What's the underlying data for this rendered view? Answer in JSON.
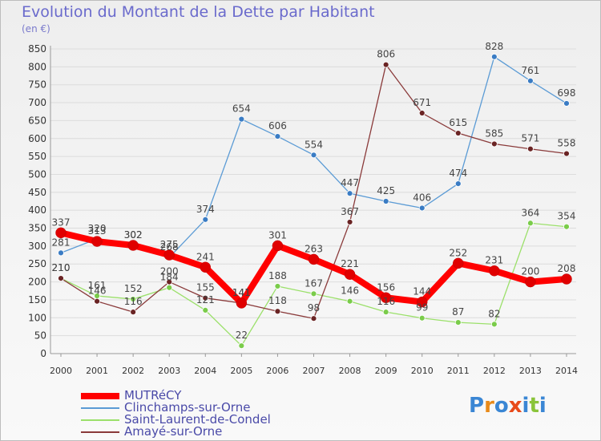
{
  "header": {
    "title": "Evolution du Montant de la Dette par Habitant",
    "subtitle": "(en €)"
  },
  "logo": {
    "text": "Proxiti",
    "colors": [
      "#3a86d4",
      "#e88a1a",
      "#3a86d4",
      "#e84a1a",
      "#3a86d4",
      "#8ac43a",
      "#3a86d4"
    ]
  },
  "chart_data": {
    "type": "line",
    "title": "Evolution du Montant de la Dette par Habitant",
    "subtitle": "(en €)",
    "ylim": [
      0,
      850
    ],
    "yticks": [
      0,
      50,
      100,
      150,
      200,
      250,
      300,
      350,
      400,
      450,
      500,
      550,
      600,
      650,
      700,
      750,
      800,
      850
    ],
    "categories": [
      "2000",
      "2001",
      "2002",
      "2003",
      "2004",
      "2005",
      "2006",
      "2007",
      "2008",
      "2009",
      "2010",
      "2011",
      "2012",
      "2013",
      "2014"
    ],
    "grid": "horizontal",
    "legend": "bottom-left",
    "series": [
      {
        "name": "Clinchamps-sur-Orne",
        "color": "#5b9bd5",
        "point": "#3a7cc4",
        "values": [
          281,
          320,
          302,
          268,
          374,
          654,
          606,
          554,
          447,
          425,
          406,
          474,
          828,
          761,
          698
        ]
      },
      {
        "name": "Saint-Laurent-de-Condel",
        "color": "#9be06a",
        "point": "#7acc4a",
        "values": [
          210,
          161,
          152,
          184,
          121,
          22,
          188,
          167,
          146,
          116,
          99,
          87,
          82,
          364,
          354
        ]
      },
      {
        "name": "Amayé-sur-Orne",
        "color": "#8a3a3a",
        "point": "#6a2424",
        "values": [
          210,
          146,
          116,
          200,
          155,
          141,
          118,
          98,
          367,
          806,
          671,
          615,
          585,
          571,
          558
        ]
      },
      {
        "name": "MUTRéCY",
        "color": "#ff0000",
        "point": "#e00000",
        "values": [
          337,
          313,
          302,
          275,
          241,
          141,
          301,
          263,
          221,
          156,
          144,
          252,
          231,
          200,
          208
        ]
      }
    ]
  }
}
